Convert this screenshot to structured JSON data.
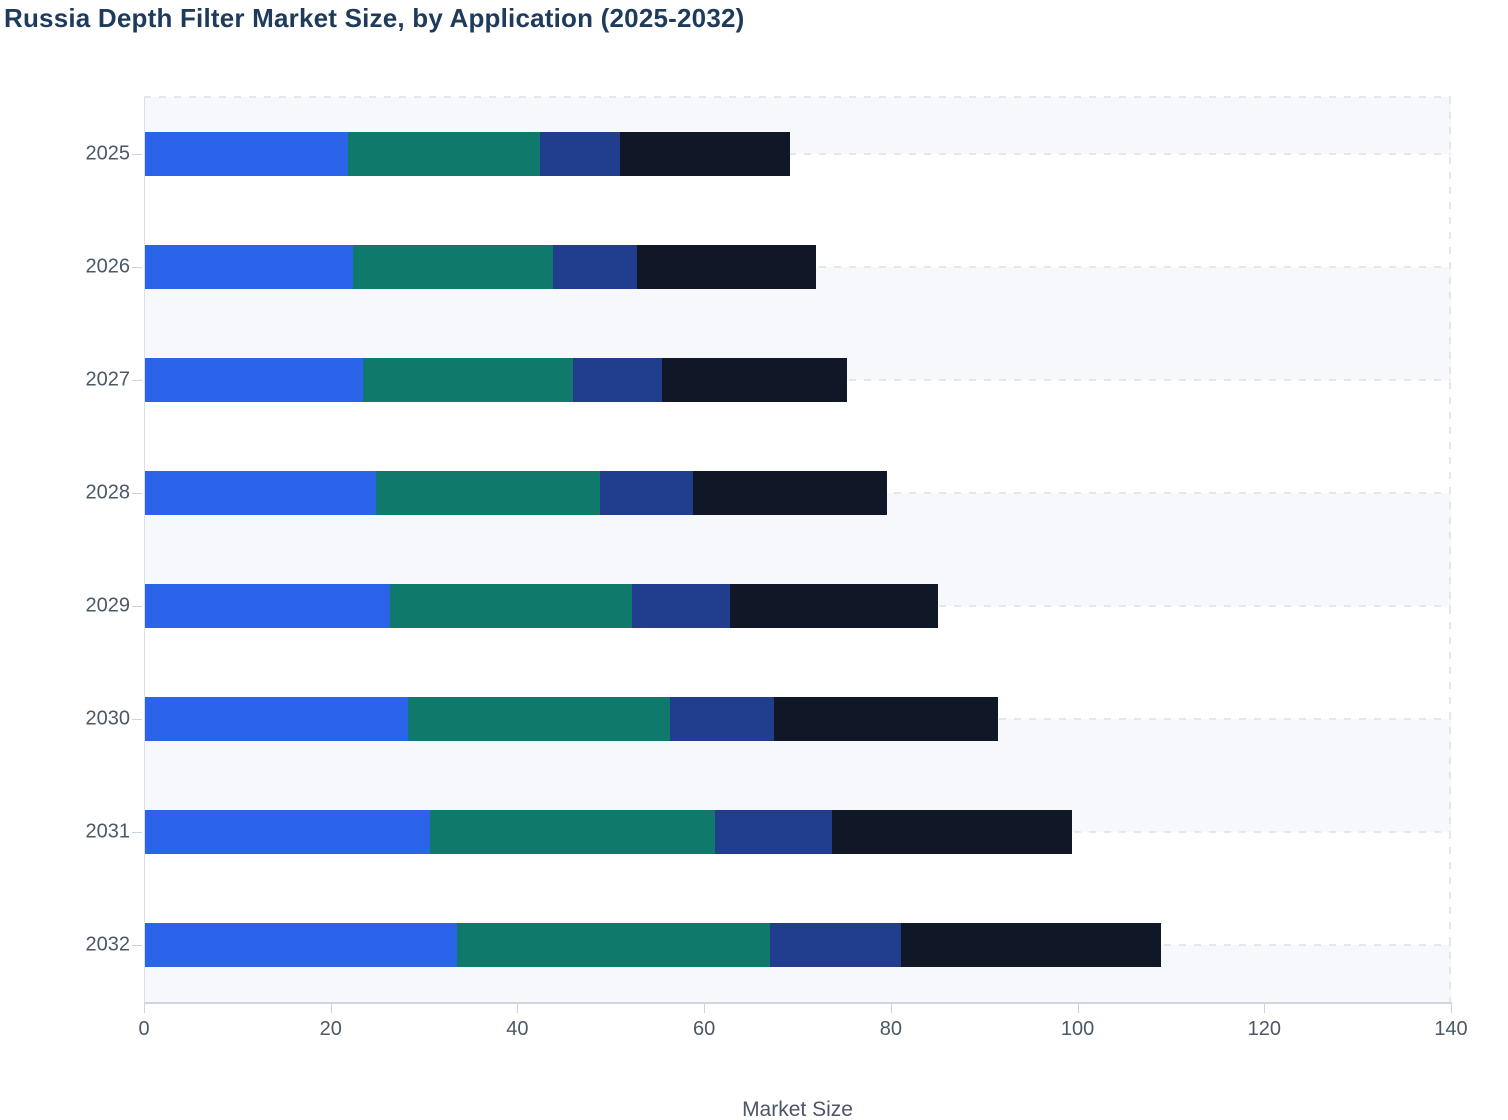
{
  "title": "Russia Depth Filter Market Size, by Application (2025-2032)",
  "chart_data": {
    "type": "bar",
    "orientation": "horizontal",
    "stacked": true,
    "title": "Russia Depth Filter Market Size, by Application (2025-2032)",
    "xlabel": "Market Size",
    "ylabel": "",
    "xlim": [
      0,
      140
    ],
    "xticks": [
      "0",
      "20",
      "40",
      "60",
      "80",
      "100",
      "120",
      "140"
    ],
    "grid": "dashed horizontal band lines, alternating light row stripes",
    "legend": "none visible",
    "categories": [
      "2025",
      "2026",
      "2027",
      "2028",
      "2029",
      "2030",
      "2031",
      "2032"
    ],
    "series": [
      {
        "name": "segment-1-blue",
        "color": "#2b64e8",
        "values": [
          21.8,
          22.4,
          23.5,
          24.8,
          26.3,
          28.3,
          30.6,
          33.5
        ]
      },
      {
        "name": "segment-2-teal",
        "color": "#0f7a6c",
        "values": [
          20.6,
          21.4,
          22.5,
          24.0,
          26.0,
          28.0,
          30.6,
          33.6
        ]
      },
      {
        "name": "segment-3-darkblue",
        "color": "#203d8e",
        "values": [
          8.6,
          9.0,
          9.5,
          10.0,
          10.5,
          11.2,
          12.5,
          14.0
        ]
      },
      {
        "name": "segment-4-navy",
        "color": "#101827",
        "values": [
          18.2,
          19.2,
          19.8,
          20.8,
          22.2,
          24.0,
          25.7,
          27.8
        ]
      }
    ],
    "totals": [
      69.2,
      72.0,
      75.3,
      79.6,
      85.0,
      91.5,
      99.4,
      108.9
    ]
  }
}
